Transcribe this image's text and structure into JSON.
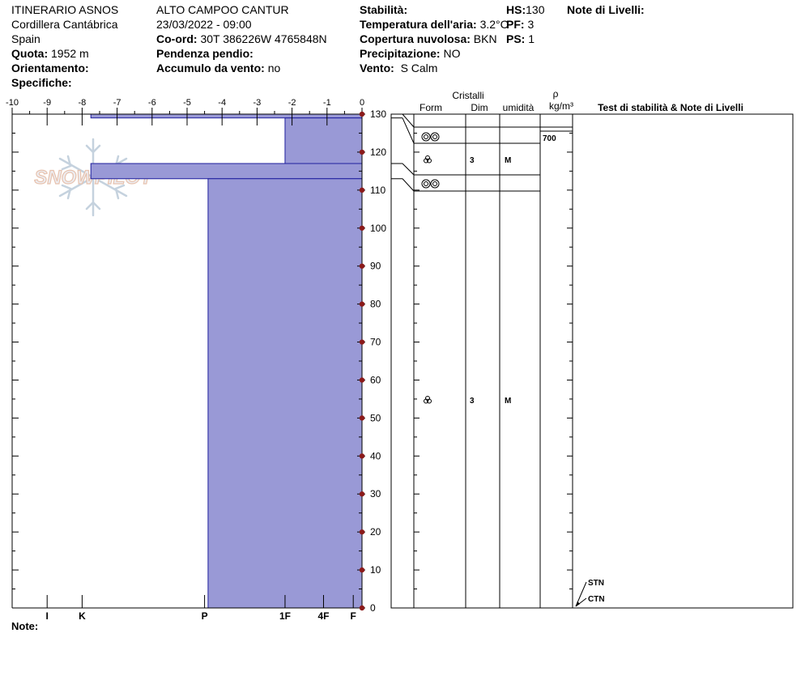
{
  "header": {
    "col1": {
      "line1": "ITINERARIO ASNOS",
      "line2": "Cordillera Cantábrica",
      "line3": "Spain",
      "quota_label": "Quota:",
      "quota_value": "1952 m",
      "orient_label": "Orientamento:",
      "orient_value": "",
      "spec_label": "Specifiche:",
      "spec_value": ""
    },
    "col2": {
      "line1": "ALTO CAMPOO CANTUR",
      "line2": "23/03/2022 - 09:00",
      "coord_label": "Co-ord:",
      "coord_value": "30T 386226W 4765848N",
      "pend_label": "Pendenza pendio:",
      "pend_value": "",
      "accum_label": "Accumulo da vento:",
      "accum_value": "no"
    },
    "col3": {
      "stab_label": "Stabilità:",
      "stab_value": "",
      "temp_label": "Temperatura dell'aria:",
      "temp_value": "3.2°C",
      "cop_label": "Copertura nuvolosa:",
      "cop_value": "BKN",
      "prec_label": "Precipitazione:",
      "prec_value": "NO",
      "vento_label": "Vento:",
      "vento_value": "S Calm"
    },
    "col4": {
      "hs_label": "HS:",
      "hs_value": "130",
      "pf_label": "PF:",
      "pf_value": "3",
      "ps_label": "PS:",
      "ps_value": "1"
    },
    "note_livelli_label": "Note di Livelli:"
  },
  "note_label": "Note:",
  "colors": {
    "layer_fill": "#9999d6",
    "layer_stroke": "#1e1e9e",
    "marker": "#8b1a1a"
  },
  "chart_data": {
    "type": "bar",
    "title": "",
    "xaxis_top": {
      "ticks": [
        -10,
        -9,
        -8,
        -7,
        -6,
        -5,
        -4,
        -3,
        -2,
        -1,
        0
      ],
      "range": [
        -10,
        0
      ]
    },
    "hardness_axis": {
      "labels": [
        "I",
        "K",
        "P",
        "1F",
        "4F",
        "F"
      ],
      "values": [
        -9,
        -8,
        -4.5,
        -2.2,
        -1.1,
        -0.25
      ]
    },
    "yaxis": {
      "range": [
        0,
        130
      ],
      "ticks": [
        0,
        10,
        20,
        30,
        40,
        50,
        60,
        70,
        80,
        90,
        100,
        110,
        120,
        130
      ]
    },
    "layers": [
      {
        "top": 130,
        "bottom": 129,
        "hardness": -7.75
      },
      {
        "top": 129,
        "bottom": 117,
        "hardness": -2.2
      },
      {
        "top": 117,
        "bottom": 113,
        "hardness": -7.75
      },
      {
        "top": 113,
        "bottom": 0,
        "hardness": -4.4
      }
    ],
    "right_panel": {
      "headers": {
        "cristalli": "Cristalli",
        "form": "Form",
        "dim": "Dim",
        "umidita": "umidità",
        "rho": "ρ",
        "rho_unit": "kg/m³",
        "test": "Test di stabilità & Note di Livelli"
      },
      "layer_rows": [
        {
          "form_icon": "melt-forms-icon",
          "dim": "",
          "wet": "",
          "density": "700",
          "height": 127.5
        },
        {
          "form_icon": "mixed-forms-icon",
          "dim": "3",
          "wet": "M",
          "density": "",
          "height": 121
        },
        {
          "form_icon": "melt-forms-icon",
          "dim": "",
          "wet": "",
          "density": "",
          "height": 115
        },
        {
          "form_icon": "mixed-forms-icon",
          "dim": "3",
          "wet": "M",
          "density": "",
          "height": 56
        }
      ],
      "tests": [
        {
          "label": "STN",
          "height": 0
        },
        {
          "label": "CTN",
          "height": 0
        }
      ]
    },
    "watermark": "SNOWPILOT"
  }
}
